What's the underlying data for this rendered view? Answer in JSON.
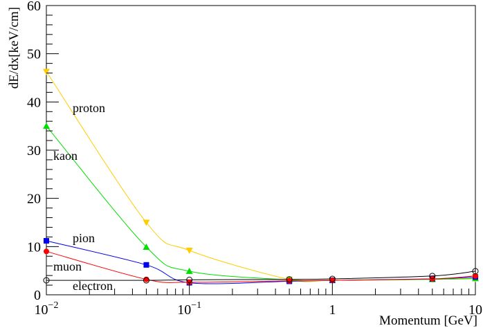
{
  "chart_data": {
    "type": "line",
    "xlabel": "Momentum [GeV]",
    "ylabel": "dE/dx[keV/cm]",
    "xscale": "log",
    "xlim": [
      0.01,
      10
    ],
    "ylim": [
      0,
      60
    ],
    "y_ticks": [
      0,
      10,
      20,
      30,
      40,
      50,
      60
    ],
    "x_ticks": [
      {
        "value": 0.01,
        "base": "10",
        "exp": "−2"
      },
      {
        "value": 0.1,
        "base": "10",
        "exp": "−1"
      },
      {
        "value": 1,
        "base": "1",
        "exp": ""
      },
      {
        "value": 10,
        "base": "10",
        "exp": ""
      }
    ],
    "grid": false,
    "legend": "inline labels",
    "series": [
      {
        "name": "proton",
        "color": "#ffcc00",
        "marker": "triangle-down",
        "x": [
          0.01,
          0.05,
          0.1,
          0.5,
          1,
          5,
          10
        ],
        "y": [
          46.3,
          15.0,
          9.2,
          3.2,
          3.0,
          3.2,
          3.3
        ]
      },
      {
        "name": "kaon",
        "color": "#00dd00",
        "marker": "triangle-up",
        "x": [
          0.01,
          0.05,
          0.1,
          0.5,
          1,
          5,
          10
        ],
        "y": [
          35.0,
          9.9,
          4.9,
          3.1,
          3.0,
          3.2,
          3.4
        ]
      },
      {
        "name": "pion",
        "color": "#0000ee",
        "marker": "square",
        "x": [
          0.01,
          0.05,
          0.1,
          0.5,
          1,
          5,
          10
        ],
        "y": [
          11.2,
          6.2,
          2.5,
          2.8,
          3.0,
          3.3,
          3.7
        ]
      },
      {
        "name": "muon",
        "color": "#ff0000",
        "marker": "circle",
        "x": [
          0.01,
          0.05,
          0.1,
          0.5,
          1,
          5,
          10
        ],
        "y": [
          9.0,
          3.2,
          2.6,
          2.9,
          3.0,
          3.3,
          3.9
        ]
      },
      {
        "name": "electron",
        "color": "#000000",
        "marker": "open-circle",
        "x": [
          0.01,
          0.05,
          0.1,
          0.5,
          1,
          5,
          10
        ],
        "y": [
          3.0,
          3.0,
          3.1,
          3.2,
          3.3,
          3.9,
          4.9
        ]
      }
    ]
  }
}
